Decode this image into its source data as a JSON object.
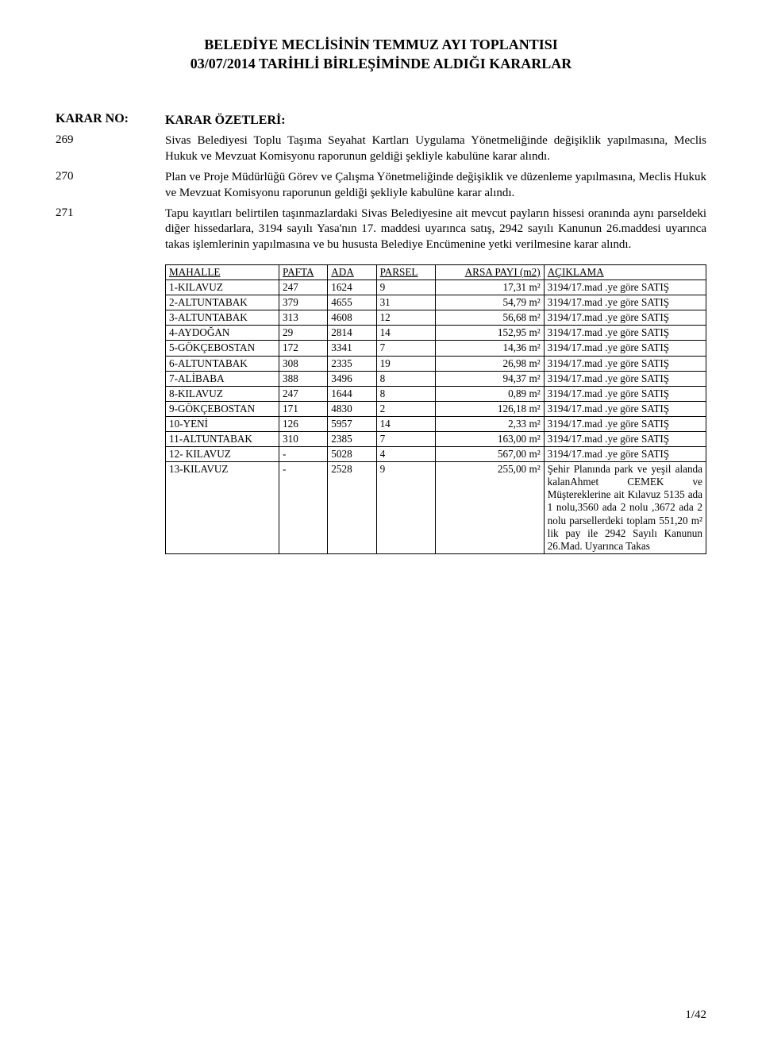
{
  "header": {
    "line1": "BELEDİYE MECLİSİNİN TEMMUZ AYI TOPLANTISI",
    "line2": "03/07/2014 TARİHLİ BİRLEŞİMİNDE ALDIĞI KARARLAR"
  },
  "labels": {
    "karar_no": "KARAR NO:",
    "karar_ozet": "KARAR ÖZETLERİ:"
  },
  "decisions": [
    {
      "no": "269",
      "text": "Sivas Belediyesi Toplu Taşıma Seyahat Kartları Uygulama Yönetmeliğinde değişiklik yapılmasına, Meclis Hukuk ve Mevzuat Komisyonu raporunun geldiği şekliyle kabulüne karar alındı."
    },
    {
      "no": "270",
      "text": "Plan ve Proje Müdürlüğü Görev ve Çalışma Yönetmeliğinde değişiklik ve düzenleme yapılmasına, Meclis Hukuk ve Mevzuat Komisyonu raporunun geldiği şekliyle kabulüne karar alındı."
    },
    {
      "no": "271",
      "text": "Tapu kayıtları belirtilen taşınmazlardaki Sivas Belediyesine ait mevcut payların hissesi oranında aynı parseldeki diğer hissedarlara, 3194 sayılı Yasa'nın 17. maddesi uyarınca satış, 2942 sayılı Kanunun 26.maddesi uyarınca takas işlemlerinin yapılmasına ve bu hususta Belediye Encümenine yetki verilmesine karar alındı."
    }
  ],
  "table": {
    "columns": {
      "mahalle": "MAHALLE",
      "pafta": "PAFTA",
      "ada": "ADA",
      "parsel": "PARSEL",
      "arsa_payi": "ARSA PAYI (m2)",
      "aciklama": "AÇIKLAMA"
    },
    "rows": [
      {
        "mahalle": "1-KILAVUZ",
        "pafta": "247",
        "ada": "1624",
        "parsel": "9",
        "arsa": "17,31 m²",
        "acik": "3194/17.mad .ye göre SATIŞ"
      },
      {
        "mahalle": "2-ALTUNTABAK",
        "pafta": "379",
        "ada": "4655",
        "parsel": "31",
        "arsa": "54,79 m²",
        "acik": "3194/17.mad .ye göre SATIŞ"
      },
      {
        "mahalle": "3-ALTUNTABAK",
        "pafta": "313",
        "ada": "4608",
        "parsel": "12",
        "arsa": "56,68 m²",
        "acik": "3194/17.mad .ye göre SATIŞ"
      },
      {
        "mahalle": "4-AYDOĞAN",
        "pafta": "29",
        "ada": "2814",
        "parsel": "14",
        "arsa": "152,95 m²",
        "acik": "3194/17.mad .ye göre SATIŞ"
      },
      {
        "mahalle": "5-GÖKÇEBOSTAN",
        "pafta": "172",
        "ada": "3341",
        "parsel": "7",
        "arsa": "14,36 m²",
        "acik": "3194/17.mad .ye göre SATIŞ"
      },
      {
        "mahalle": "6-ALTUNTABAK",
        "pafta": "308",
        "ada": "2335",
        "parsel": "19",
        "arsa": "26,98 m²",
        "acik": "3194/17.mad .ye göre SATIŞ"
      },
      {
        "mahalle": "7-ALİBABA",
        "pafta": "388",
        "ada": "3496",
        "parsel": "8",
        "arsa": "94,37 m²",
        "acik": "3194/17.mad .ye göre SATIŞ"
      },
      {
        "mahalle": "8-KILAVUZ",
        "pafta": "247",
        "ada": "1644",
        "parsel": "8",
        "arsa": "0,89 m²",
        "acik": "3194/17.mad .ye göre SATIŞ"
      },
      {
        "mahalle": "9-GÖKÇEBOSTAN",
        "pafta": "171",
        "ada": "4830",
        "parsel": "2",
        "arsa": "126,18 m²",
        "acik": "3194/17.mad .ye göre SATIŞ"
      },
      {
        "mahalle": "10-YENİ",
        "pafta": "126",
        "ada": "5957",
        "parsel": "14",
        "arsa": "2,33 m²",
        "acik": "3194/17.mad .ye göre SATIŞ"
      },
      {
        "mahalle": "11-ALTUNTABAK",
        "pafta": "310",
        "ada": "2385",
        "parsel": "7",
        "arsa": "163,00 m²",
        "acik": "3194/17.mad .ye göre SATIŞ"
      },
      {
        "mahalle": "12- KILAVUZ",
        "pafta": "-",
        "ada": "5028",
        "parsel": "4",
        "arsa": "567,00 m²",
        "acik": "3194/17.mad .ye göre SATIŞ"
      },
      {
        "mahalle": "13-KILAVUZ",
        "pafta": "-",
        "ada": "2528",
        "parsel": "9",
        "arsa": "255,00 m²",
        "acik": "Şehir Planında park ve yeşil alanda kalanAhmet CEMEK ve Müştereklerine ait Kılavuz 5135 ada 1 nolu,3560 ada 2 nolu ,3672 ada 2 nolu parsellerdeki toplam 551,20 m² lik pay ile 2942 Sayılı Kanunun 26.Mad. Uyarınca Takas"
      }
    ]
  },
  "footer": {
    "page_number": "1/42"
  }
}
